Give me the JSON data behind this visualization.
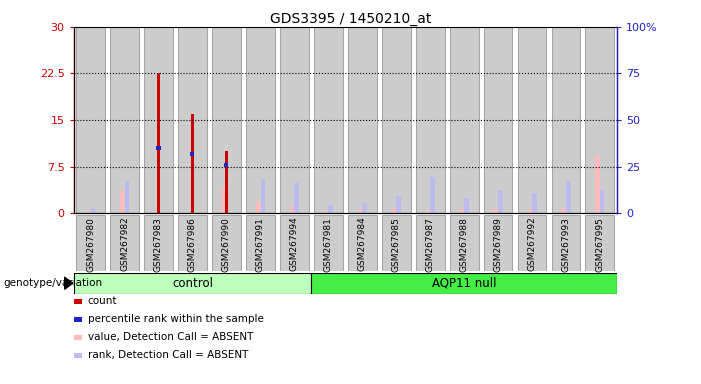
{
  "title": "GDS3395 / 1450210_at",
  "samples": [
    "GSM267980",
    "GSM267982",
    "GSM267983",
    "GSM267986",
    "GSM267990",
    "GSM267991",
    "GSM267994",
    "GSM267981",
    "GSM267984",
    "GSM267985",
    "GSM267987",
    "GSM267988",
    "GSM267989",
    "GSM267992",
    "GSM267993",
    "GSM267995"
  ],
  "n_control": 7,
  "n_aqp11": 9,
  "count": [
    0,
    0,
    22.5,
    16,
    10,
    0,
    0,
    0,
    0,
    0,
    0,
    0,
    0,
    0,
    0,
    0
  ],
  "percentile_rank_left": [
    0,
    0,
    10.5,
    9.5,
    7.8,
    0,
    0,
    0,
    0,
    0,
    0,
    0,
    0,
    0,
    0,
    0
  ],
  "value_absent": [
    0.35,
    3.8,
    0,
    0,
    4.0,
    2.0,
    1.1,
    0.3,
    0.6,
    0.6,
    0.35,
    0.6,
    0.6,
    0.45,
    0.6,
    9.2
  ],
  "rank_absent": [
    0.8,
    5.2,
    0,
    0,
    0,
    5.5,
    4.8,
    1.3,
    1.6,
    2.8,
    5.8,
    2.4,
    3.7,
    3.2,
    5.2,
    3.7
  ],
  "ylim_left": [
    0,
    30
  ],
  "ylim_right": [
    0,
    100
  ],
  "yticks_left": [
    0,
    7.5,
    15,
    22.5,
    30
  ],
  "yticks_right": [
    0,
    25,
    50,
    75,
    100
  ],
  "ytick_labels_left": [
    "0",
    "7.5",
    "15",
    "22.5",
    "30"
  ],
  "ytick_labels_right": [
    "0",
    "25",
    "50",
    "75",
    "100%"
  ],
  "color_count": "#cc0000",
  "color_rank": "#2222cc",
  "color_value_absent": "#ffbbbb",
  "color_rank_absent": "#bbbbee",
  "color_bg_control": "#bbffbb",
  "color_bg_aqp11": "#44ee44",
  "color_bar_bg": "#cccccc",
  "color_bar_border": "#888888",
  "legend_items": [
    "count",
    "percentile rank within the sample",
    "value, Detection Call = ABSENT",
    "rank, Detection Call = ABSENT"
  ],
  "legend_colors": [
    "#cc0000",
    "#2222cc",
    "#ffbbbb",
    "#bbbbee"
  ]
}
